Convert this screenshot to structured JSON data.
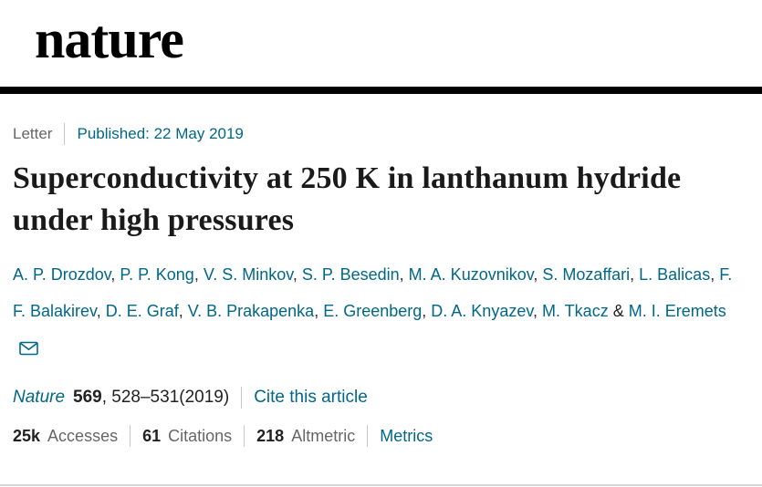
{
  "brand": {
    "logo_text": "nature"
  },
  "meta": {
    "article_type": "Letter",
    "published": "Published: 22 May 2019"
  },
  "title": "Superconductivity at 250 K in lanthanum hydride under high pressures",
  "authors": [
    "A. P. Drozdov",
    "P. P. Kong",
    "V. S. Minkov",
    "S. P. Besedin",
    "M. A. Kuzovnikov",
    "S. Mozaffari",
    "L. Balicas",
    "F. F. Balakirev",
    "D. E. Graf",
    "V. B. Prakapenka",
    "E. Greenberg",
    "D. A. Knyazev",
    "M. Tkacz",
    "M. I. Eremets"
  ],
  "icons": {
    "email": "envelope-icon"
  },
  "citation": {
    "journal": "Nature",
    "volume": "569",
    "pages": ", 528–531(2019)",
    "cite_link": "Cite this article"
  },
  "metrics": [
    {
      "value": "25k",
      "label": "Accesses"
    },
    {
      "value": "61",
      "label": "Citations"
    },
    {
      "value": "218",
      "label": "Altmetric"
    }
  ],
  "metrics_link": "Metrics",
  "colors": {
    "link": "#016789",
    "text": "#1f1f1f",
    "muted": "#666666",
    "header_rule": "#000000"
  }
}
